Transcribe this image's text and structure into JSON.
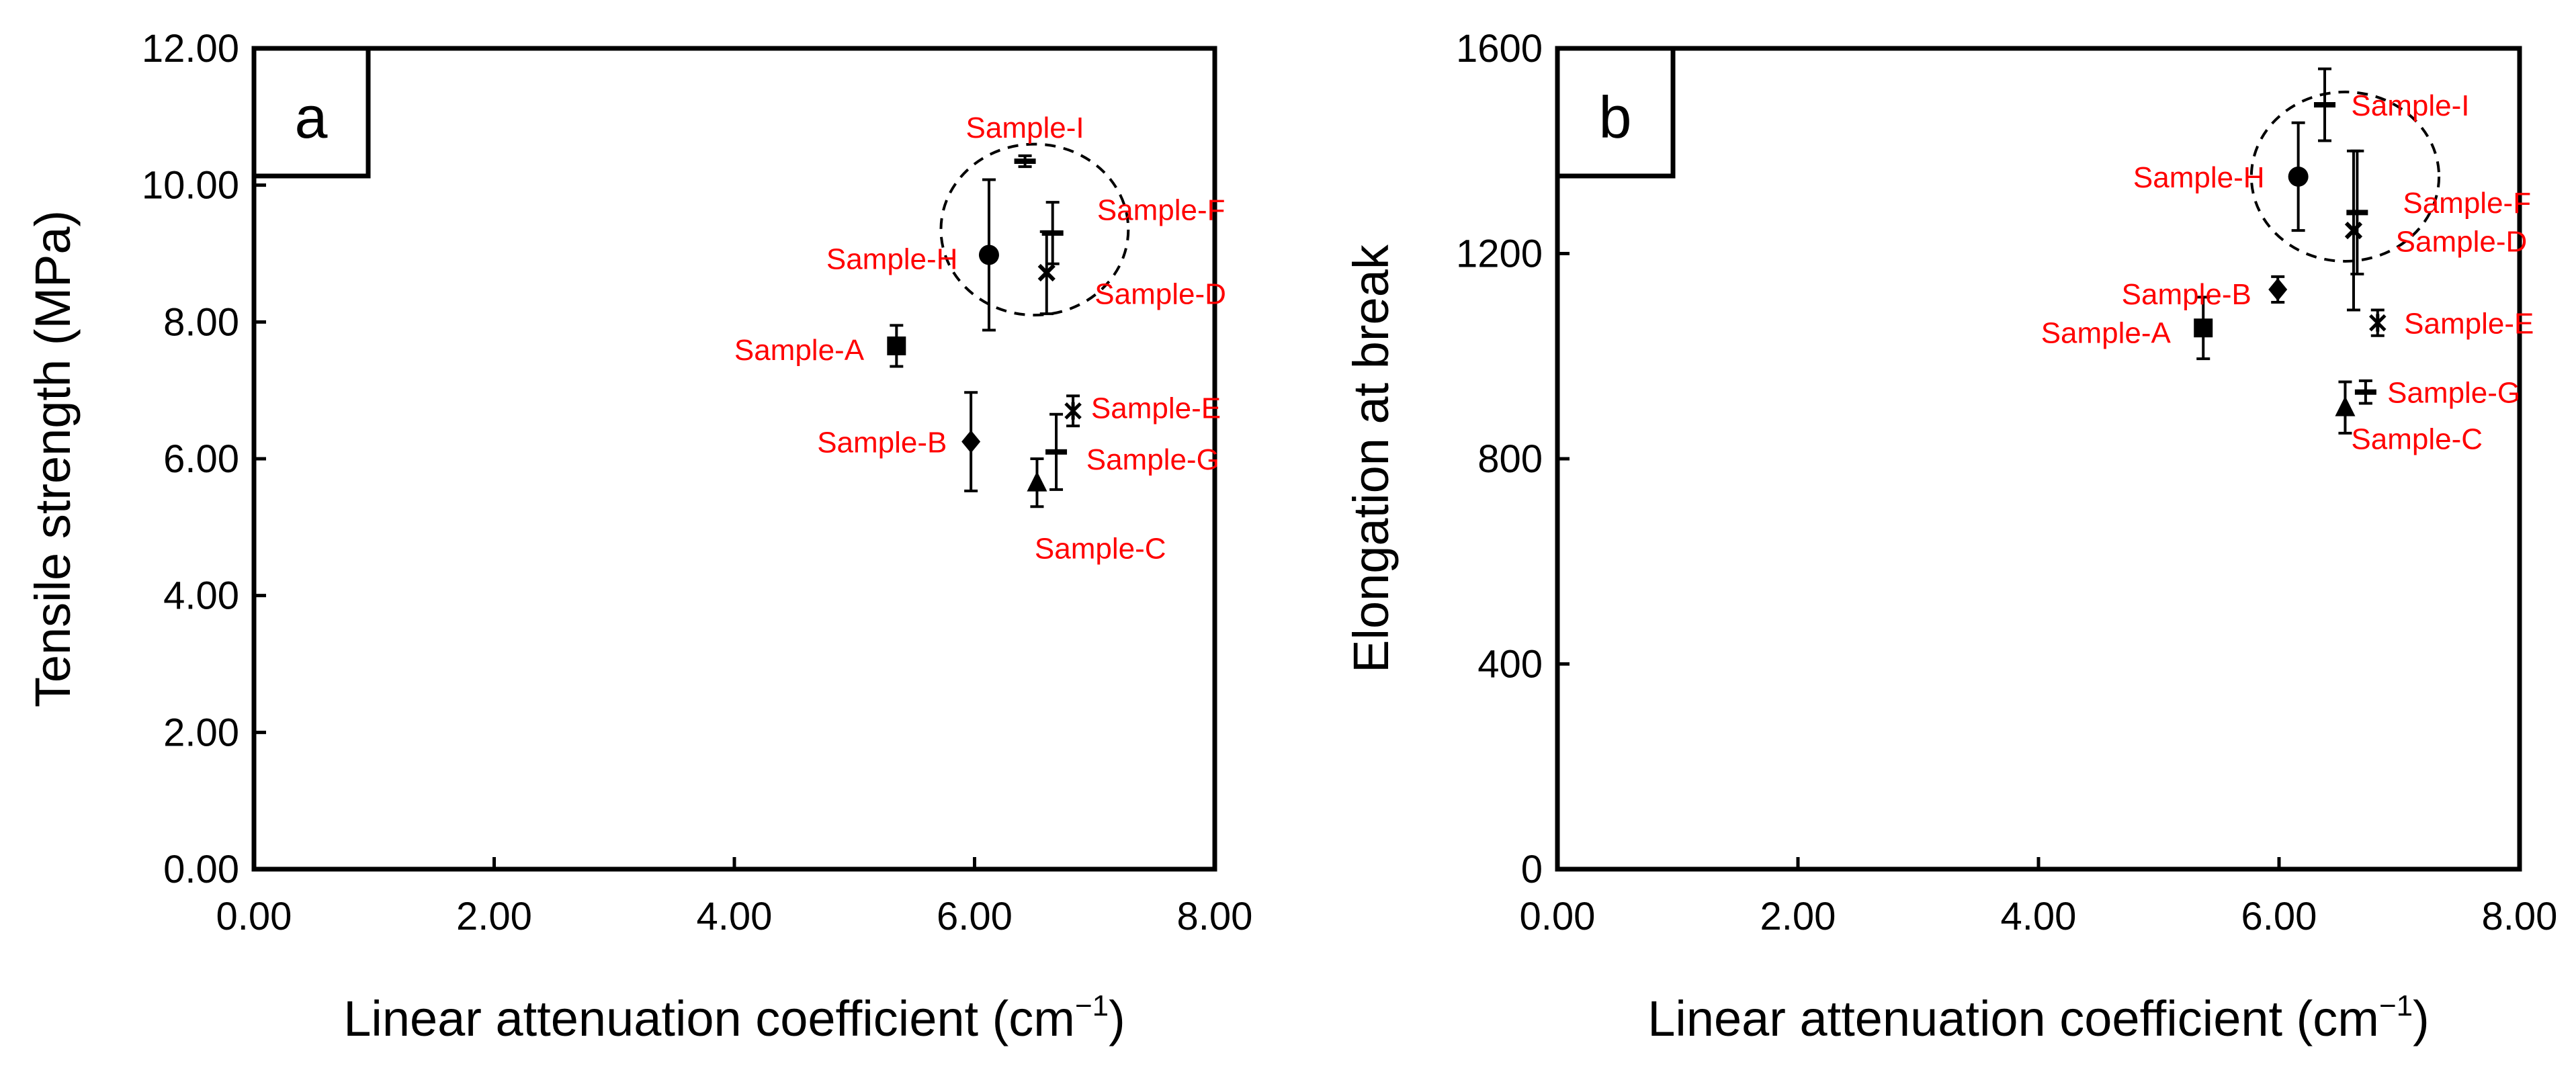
{
  "figure": {
    "superscript_minus1": "−1",
    "label_close_paren": ")"
  },
  "colors": {
    "label": "#ff0000",
    "marker": "#000000",
    "axis": "#000000"
  },
  "chart_data": [
    {
      "type": "scatter",
      "panel_label": "a",
      "xlabel": "Linear attenuation coefficient (cm",
      "ylabel": "Tensile strength (MPa)",
      "xlim": [
        0,
        8
      ],
      "ylim": [
        0,
        12
      ],
      "x_ticks": [
        "0.00",
        "2.00",
        "4.00",
        "6.00",
        "8.00"
      ],
      "y_ticks": [
        "0.00",
        "2.00",
        "4.00",
        "6.00",
        "8.00",
        "10.00",
        "12.00"
      ],
      "x_tick_values": [
        0,
        2,
        4,
        6,
        8
      ],
      "y_tick_values": [
        0,
        2,
        4,
        6,
        8,
        10,
        12
      ],
      "grid": false,
      "legend": "none",
      "highlight_circle": {
        "cx": 6.5,
        "cy": 9.35,
        "rx": 0.78,
        "ry": 1.25
      },
      "points": [
        {
          "name": "Sample-A",
          "x": 5.35,
          "y": 7.65,
          "err": 0.3,
          "marker": "square",
          "label_anchor": "end",
          "label_dx": -0.27,
          "label_dy": -0.05
        },
        {
          "name": "Sample-B",
          "x": 5.97,
          "y": 6.25,
          "err": 0.72,
          "marker": "diamond",
          "label_anchor": "end",
          "label_dx": -0.2,
          "label_dy": 0.0
        },
        {
          "name": "Sample-C",
          "x": 6.52,
          "y": 5.65,
          "err": 0.35,
          "marker": "triangle",
          "label_anchor": "start",
          "label_dx": -0.02,
          "label_dy": -0.95
        },
        {
          "name": "Sample-D",
          "x": 6.6,
          "y": 8.72,
          "err": 0.6,
          "marker": "x",
          "label_anchor": "start",
          "label_dx": 0.4,
          "label_dy": -0.3
        },
        {
          "name": "Sample-E",
          "x": 6.82,
          "y": 6.7,
          "err": 0.22,
          "marker": "star",
          "label_anchor": "start",
          "label_dx": 0.15,
          "label_dy": 0.05
        },
        {
          "name": "Sample-F",
          "x": 6.65,
          "y": 9.3,
          "err": 0.45,
          "marker": "dash",
          "label_anchor": "start",
          "label_dx": 0.37,
          "label_dy": 0.35
        },
        {
          "name": "Sample-G",
          "x": 6.68,
          "y": 6.1,
          "err": 0.55,
          "marker": "dash",
          "label_anchor": "start",
          "label_dx": 0.25,
          "label_dy": -0.1
        },
        {
          "name": "Sample-H",
          "x": 6.12,
          "y": 8.98,
          "err": 1.1,
          "marker": "circle",
          "label_anchor": "end",
          "label_dx": -0.26,
          "label_dy": -0.05
        },
        {
          "name": "Sample-I",
          "x": 6.42,
          "y": 10.35,
          "err": 0.08,
          "marker": "dash",
          "label_anchor": "middle",
          "label_dx": 0.0,
          "label_dy": 0.5
        }
      ]
    },
    {
      "type": "scatter",
      "panel_label": "b",
      "xlabel": "Linear attenuation coefficient (cm",
      "ylabel": "Elongation at break",
      "xlim": [
        0,
        8
      ],
      "ylim": [
        0,
        1600
      ],
      "x_ticks": [
        "0.00",
        "2.00",
        "4.00",
        "6.00",
        "8.00"
      ],
      "y_ticks": [
        "0",
        "400",
        "800",
        "1200",
        "1600"
      ],
      "x_tick_values": [
        0,
        2,
        4,
        6,
        8
      ],
      "y_tick_values": [
        0,
        400,
        800,
        1200,
        1600
      ],
      "grid": false,
      "legend": "none",
      "highlight_circle": {
        "cx": 6.55,
        "cy": 1350,
        "rx": 0.78,
        "ry": 165
      },
      "points": [
        {
          "name": "Sample-A",
          "x": 5.37,
          "y": 1055,
          "err": 60,
          "marker": "square",
          "label_anchor": "end",
          "label_dx": -0.27,
          "label_dy": -8
        },
        {
          "name": "Sample-B",
          "x": 5.99,
          "y": 1130,
          "err": 25,
          "marker": "diamond",
          "label_anchor": "end",
          "label_dx": -0.22,
          "label_dy": -8
        },
        {
          "name": "Sample-C",
          "x": 6.55,
          "y": 900,
          "err": 50,
          "marker": "triangle",
          "label_anchor": "start",
          "label_dx": 0.05,
          "label_dy": -60
        },
        {
          "name": "Sample-D",
          "x": 6.62,
          "y": 1245,
          "err": 155,
          "marker": "x",
          "label_anchor": "start",
          "label_dx": 0.35,
          "label_dy": -20
        },
        {
          "name": "Sample-E",
          "x": 6.82,
          "y": 1065,
          "err": 25,
          "marker": "star",
          "label_anchor": "start",
          "label_dx": 0.22,
          "label_dy": 0
        },
        {
          "name": "Sample-F",
          "x": 6.65,
          "y": 1280,
          "err": 120,
          "marker": "dash",
          "label_anchor": "start",
          "label_dx": 0.38,
          "label_dy": 20
        },
        {
          "name": "Sample-G",
          "x": 6.72,
          "y": 930,
          "err": 22,
          "marker": "dash",
          "label_anchor": "start",
          "label_dx": 0.18,
          "label_dy": 0
        },
        {
          "name": "Sample-H",
          "x": 6.16,
          "y": 1350,
          "err": 105,
          "marker": "circle",
          "label_anchor": "end",
          "label_dx": -0.28,
          "label_dy": 0
        },
        {
          "name": "Sample-I",
          "x": 6.38,
          "y": 1490,
          "err": 70,
          "marker": "dash",
          "label_anchor": "start",
          "label_dx": 0.22,
          "label_dy": 0
        }
      ]
    }
  ]
}
